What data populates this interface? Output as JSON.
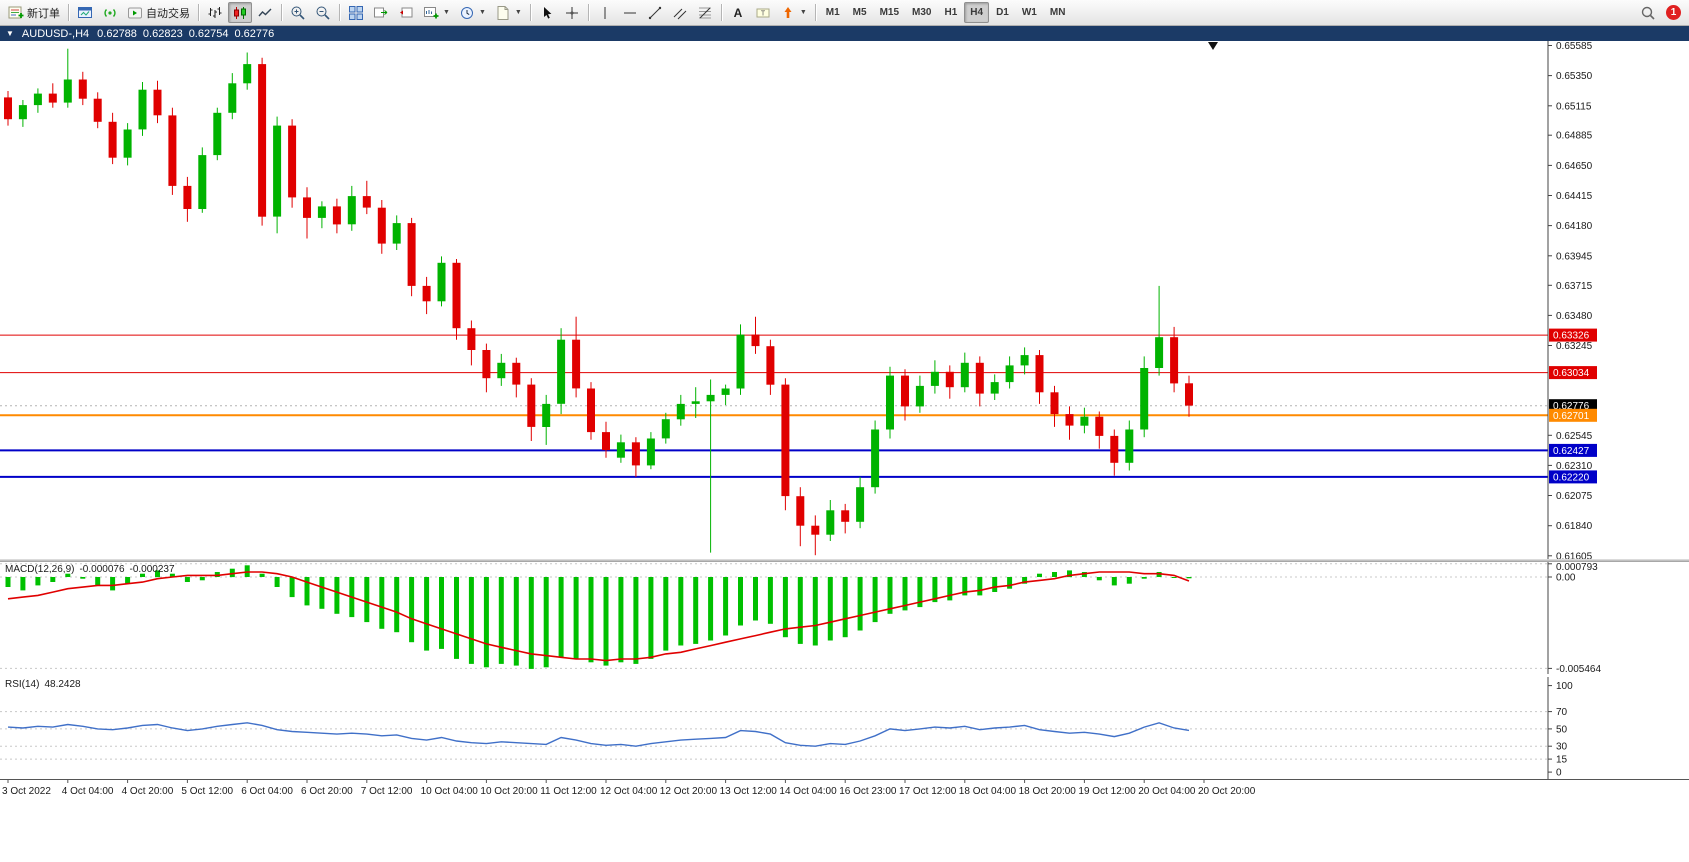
{
  "toolbar": {
    "new_order_label": "新订单",
    "autotrading_label": "自动交易",
    "timeframes": [
      "M1",
      "M5",
      "M15",
      "M30",
      "H1",
      "H4",
      "D1",
      "W1",
      "MN"
    ],
    "active_timeframe": "H4",
    "notification_badge": "1"
  },
  "title_bar": {
    "symbol_period": "AUDUSD-,H4",
    "open": "0.62788",
    "high": "0.62823",
    "low": "0.62754",
    "close": "0.62776"
  },
  "macd_panel": {
    "label": "MACD(12,26,9)",
    "main_value": "-0.000076",
    "signal_value": "-0.000237"
  },
  "rsi_panel": {
    "label": "RSI(14)",
    "value": "48.2428"
  },
  "chart_data": [
    {
      "type": "candlestick",
      "symbol": "AUDUSD-",
      "period": "H4",
      "up_color": "#00b300",
      "down_color": "#e00000",
      "ylim": [
        0.6158,
        0.6562
      ],
      "candles": [
        [
          0.6518,
          0.6523,
          0.6496,
          0.6501
        ],
        [
          0.6501,
          0.6516,
          0.6495,
          0.6512
        ],
        [
          0.6512,
          0.6525,
          0.6506,
          0.6521
        ],
        [
          0.6521,
          0.6529,
          0.651,
          0.6514
        ],
        [
          0.6514,
          0.6556,
          0.651,
          0.6532
        ],
        [
          0.6532,
          0.6538,
          0.6512,
          0.6517
        ],
        [
          0.6517,
          0.6522,
          0.6494,
          0.6499
        ],
        [
          0.6499,
          0.6506,
          0.6466,
          0.6471
        ],
        [
          0.6471,
          0.6498,
          0.6465,
          0.6493
        ],
        [
          0.6493,
          0.653,
          0.6488,
          0.6524
        ],
        [
          0.6524,
          0.6531,
          0.6498,
          0.6504
        ],
        [
          0.6504,
          0.651,
          0.6442,
          0.6449
        ],
        [
          0.6449,
          0.6456,
          0.6421,
          0.6431
        ],
        [
          0.6431,
          0.6479,
          0.6428,
          0.6473
        ],
        [
          0.6473,
          0.651,
          0.6469,
          0.6506
        ],
        [
          0.6506,
          0.6537,
          0.6501,
          0.6529
        ],
        [
          0.6529,
          0.6553,
          0.6524,
          0.6544
        ],
        [
          0.6544,
          0.6549,
          0.6418,
          0.6425
        ],
        [
          0.6425,
          0.6503,
          0.6412,
          0.6496
        ],
        [
          0.6496,
          0.6501,
          0.6432,
          0.644
        ],
        [
          0.644,
          0.6448,
          0.6408,
          0.6424
        ],
        [
          0.6424,
          0.6437,
          0.6416,
          0.6433
        ],
        [
          0.6433,
          0.6439,
          0.6412,
          0.6419
        ],
        [
          0.6419,
          0.6449,
          0.6414,
          0.6441
        ],
        [
          0.6441,
          0.6453,
          0.6427,
          0.6432
        ],
        [
          0.6432,
          0.6438,
          0.6396,
          0.6404
        ],
        [
          0.6404,
          0.6426,
          0.6399,
          0.642
        ],
        [
          0.642,
          0.6424,
          0.6363,
          0.6371
        ],
        [
          0.6371,
          0.6378,
          0.6349,
          0.6359
        ],
        [
          0.6359,
          0.6394,
          0.6355,
          0.6389
        ],
        [
          0.6389,
          0.6392,
          0.6329,
          0.6338
        ],
        [
          0.6338,
          0.6344,
          0.6309,
          0.6321
        ],
        [
          0.6321,
          0.6326,
          0.6288,
          0.6299
        ],
        [
          0.6299,
          0.6318,
          0.6293,
          0.6311
        ],
        [
          0.6311,
          0.6315,
          0.6284,
          0.6294
        ],
        [
          0.6294,
          0.6299,
          0.625,
          0.6261
        ],
        [
          0.6261,
          0.6286,
          0.6247,
          0.6279
        ],
        [
          0.6279,
          0.6338,
          0.6271,
          0.6329
        ],
        [
          0.6329,
          0.6347,
          0.6284,
          0.6291
        ],
        [
          0.6291,
          0.6296,
          0.6251,
          0.6257
        ],
        [
          0.6257,
          0.6265,
          0.6237,
          0.6243
        ],
        [
          0.6237,
          0.6255,
          0.6233,
          0.6249
        ],
        [
          0.6249,
          0.6253,
          0.6222,
          0.6231
        ],
        [
          0.6231,
          0.6257,
          0.6228,
          0.6252
        ],
        [
          0.6252,
          0.6272,
          0.6248,
          0.6267
        ],
        [
          0.6267,
          0.6286,
          0.6262,
          0.6279
        ],
        [
          0.6279,
          0.6292,
          0.6268,
          0.6281
        ],
        [
          0.6281,
          0.6298,
          0.6163,
          0.6286
        ],
        [
          0.6286,
          0.6294,
          0.6278,
          0.6291
        ],
        [
          0.6291,
          0.6341,
          0.6286,
          0.6333
        ],
        [
          0.6333,
          0.6347,
          0.6318,
          0.6324
        ],
        [
          0.6324,
          0.6329,
          0.6286,
          0.6294
        ],
        [
          0.6294,
          0.6299,
          0.6196,
          0.6207
        ],
        [
          0.6207,
          0.6214,
          0.6168,
          0.6184
        ],
        [
          0.6184,
          0.6192,
          0.6161,
          0.6177
        ],
        [
          0.6177,
          0.6204,
          0.6172,
          0.6196
        ],
        [
          0.6196,
          0.6201,
          0.6178,
          0.6187
        ],
        [
          0.6187,
          0.6222,
          0.6182,
          0.6214
        ],
        [
          0.6214,
          0.6266,
          0.6209,
          0.6259
        ],
        [
          0.6259,
          0.6308,
          0.6252,
          0.6301
        ],
        [
          0.6301,
          0.6306,
          0.6266,
          0.6277
        ],
        [
          0.6277,
          0.6301,
          0.6272,
          0.6293
        ],
        [
          0.6293,
          0.6313,
          0.6287,
          0.6304
        ],
        [
          0.6304,
          0.6309,
          0.6283,
          0.6292
        ],
        [
          0.6292,
          0.6319,
          0.6288,
          0.6311
        ],
        [
          0.6311,
          0.6316,
          0.6277,
          0.6287
        ],
        [
          0.6287,
          0.6302,
          0.6282,
          0.6296
        ],
        [
          0.6296,
          0.6316,
          0.6291,
          0.6309
        ],
        [
          0.6309,
          0.6323,
          0.6302,
          0.6317
        ],
        [
          0.6317,
          0.6321,
          0.6279,
          0.6288
        ],
        [
          0.6288,
          0.6293,
          0.6261,
          0.6271
        ],
        [
          0.6271,
          0.6277,
          0.6251,
          0.6262
        ],
        [
          0.6262,
          0.6276,
          0.6256,
          0.6269
        ],
        [
          0.6269,
          0.6273,
          0.6244,
          0.6254
        ],
        [
          0.6254,
          0.6259,
          0.6223,
          0.6233
        ],
        [
          0.6233,
          0.6266,
          0.6227,
          0.6259
        ],
        [
          0.6259,
          0.6316,
          0.6253,
          0.6307
        ],
        [
          0.6307,
          0.6371,
          0.6301,
          0.6331
        ],
        [
          0.6331,
          0.6339,
          0.6288,
          0.6295
        ],
        [
          0.6295,
          0.6301,
          0.6269,
          0.62776
        ]
      ],
      "x_labels": [
        "3 Oct 2022",
        "4 Oct 04:00",
        "4 Oct 20:00",
        "5 Oct 12:00",
        "6 Oct 04:00",
        "6 Oct 20:00",
        "7 Oct 12:00",
        "10 Oct 04:00",
        "10 Oct 20:00",
        "11 Oct 12:00",
        "12 Oct 04:00",
        "12 Oct 20:00",
        "13 Oct 12:00",
        "14 Oct 04:00",
        "16 Oct 23:00",
        "17 Oct 12:00",
        "18 Oct 04:00",
        "18 Oct 20:00",
        "19 Oct 12:00",
        "20 Oct 04:00",
        "20 Oct 20:00"
      ],
      "label_step": 4,
      "y_ticks": [
        "0.65585",
        "0.65350",
        "0.65115",
        "0.64885",
        "0.64650",
        "0.64415",
        "0.64180",
        "0.63945",
        "0.63715",
        "0.63480",
        "0.63245",
        "0.62545",
        "0.62310",
        "0.62075",
        "0.61840",
        "0.61605"
      ],
      "h_lines": [
        {
          "price": 0.63326,
          "color": "#e00000",
          "width": 1
        },
        {
          "price": 0.63034,
          "color": "#e00000",
          "width": 1
        },
        {
          "price": 0.62701,
          "color": "#ff8a00",
          "width": 2
        },
        {
          "price": 0.62427,
          "color": "#0000c8",
          "width": 2
        },
        {
          "price": 0.6222,
          "color": "#0000c8",
          "width": 2
        }
      ],
      "bid": 0.62776,
      "price_labels": [
        {
          "value": "0.63326",
          "bg": "#e00000",
          "fg": "#ffffff"
        },
        {
          "value": "0.63034",
          "bg": "#e00000",
          "fg": "#ffffff"
        },
        {
          "value": "0.62776",
          "bg": "#000000",
          "fg": "#ffffff"
        },
        {
          "value": "0.62701",
          "bg": "#ff8a00",
          "fg": "#ffffff"
        },
        {
          "value": "0.62427",
          "bg": "#0000c8",
          "fg": "#ffffff"
        },
        {
          "value": "0.62220",
          "bg": "#0000c8",
          "fg": "#ffffff"
        }
      ]
    },
    {
      "type": "bar",
      "name": "MACD(12,26,9)",
      "hist_color": "#00c000",
      "signal_color": "#e00000",
      "ylim": [
        -0.0058,
        0.0009
      ],
      "values": [
        -0.0006,
        -0.0008,
        -0.0005,
        -0.0003,
        0.0002,
        -0.0001,
        -0.0005,
        -0.0008,
        -0.0004,
        0.0002,
        0.0004,
        0.0002,
        -0.0003,
        -0.0002,
        0.0003,
        0.0005,
        0.0007,
        0.0002,
        -0.0006,
        -0.0012,
        -0.0017,
        -0.0019,
        -0.0022,
        -0.0024,
        -0.0027,
        -0.0031,
        -0.0033,
        -0.0039,
        -0.0044,
        -0.0043,
        -0.0049,
        -0.0052,
        -0.0054,
        -0.0052,
        -0.0053,
        -0.0055,
        -0.0054,
        -0.0048,
        -0.0049,
        -0.0051,
        -0.0053,
        -0.0051,
        -0.0052,
        -0.0049,
        -0.0044,
        -0.0041,
        -0.004,
        -0.0038,
        -0.0035,
        -0.0029,
        -0.0026,
        -0.0028,
        -0.0036,
        -0.004,
        -0.0041,
        -0.0038,
        -0.0036,
        -0.0032,
        -0.0027,
        -0.0022,
        -0.002,
        -0.0018,
        -0.0015,
        -0.0014,
        -0.0011,
        -0.0011,
        -0.0009,
        -0.0007,
        -0.0004,
        0.0002,
        0.0003,
        0.0004,
        0.0003,
        -0.0002,
        -0.0005,
        -0.0004,
        -0.0001,
        0.0003,
        0,
        -7.6e-05
      ],
      "signal": [
        -0.0013,
        -0.0012,
        -0.0011,
        -0.0009,
        -0.0007,
        -0.0006,
        -0.0005,
        -0.0005,
        -0.0004,
        -0.0003,
        -0.0001,
        0,
        0.0001,
        0.0001,
        0.0001,
        0.0002,
        0.0003,
        0.0003,
        0.0002,
        0,
        -0.0003,
        -0.0006,
        -0.0009,
        -0.0012,
        -0.0015,
        -0.0018,
        -0.0021,
        -0.0025,
        -0.0028,
        -0.0031,
        -0.0034,
        -0.0037,
        -0.004,
        -0.0042,
        -0.0044,
        -0.0046,
        -0.0047,
        -0.0048,
        -0.0049,
        -0.0049,
        -0.005,
        -0.0049,
        -0.0049,
        -0.0048,
        -0.0046,
        -0.0045,
        -0.0043,
        -0.0041,
        -0.0039,
        -0.0037,
        -0.0035,
        -0.0033,
        -0.0031,
        -0.003,
        -0.0029,
        -0.0027,
        -0.0025,
        -0.0023,
        -0.0021,
        -0.0019,
        -0.0017,
        -0.0015,
        -0.0013,
        -0.0011,
        -0.0009,
        -0.0008,
        -0.0006,
        -0.0005,
        -0.0003,
        -0.0002,
        -0.0001,
        0.0001,
        0.0002,
        0.0003,
        0.0003,
        0.0003,
        0.0002,
        0.0002,
        0.0001,
        -0.000237
      ],
      "axis_labels": [
        {
          "text": "0.000793",
          "value": 0.000793
        },
        {
          "text": "0.00",
          "value": 0
        },
        {
          "text": "-0.005464",
          "value": -0.005464
        }
      ]
    },
    {
      "type": "line",
      "name": "RSI(14)",
      "line_color": "#4070c8",
      "ylim": [
        -8,
        110
      ],
      "levels": [
        70,
        50,
        30,
        15
      ],
      "values": [
        52,
        51,
        53,
        52,
        55,
        53,
        50,
        49,
        51,
        54,
        55,
        51,
        48,
        50,
        53,
        55,
        57,
        54,
        49,
        47,
        46,
        45,
        44,
        45,
        44,
        42,
        43,
        39,
        37,
        40,
        36,
        34,
        33,
        35,
        34,
        33,
        32,
        40,
        37,
        33,
        31,
        32,
        30,
        33,
        35,
        37,
        38,
        39,
        40,
        48,
        47,
        44,
        34,
        31,
        30,
        33,
        32,
        36,
        42,
        50,
        48,
        50,
        52,
        51,
        53,
        49,
        51,
        52,
        54,
        49,
        47,
        45,
        46,
        44,
        41,
        45,
        52,
        57,
        51,
        48.24
      ],
      "axis_labels": [
        {
          "text": "100",
          "value": 100
        },
        {
          "text": "70",
          "value": 70
        },
        {
          "text": "50",
          "value": 50
        },
        {
          "text": "30",
          "value": 30
        },
        {
          "text": "15",
          "value": 15
        },
        {
          "text": "0",
          "value": 0
        }
      ]
    }
  ]
}
